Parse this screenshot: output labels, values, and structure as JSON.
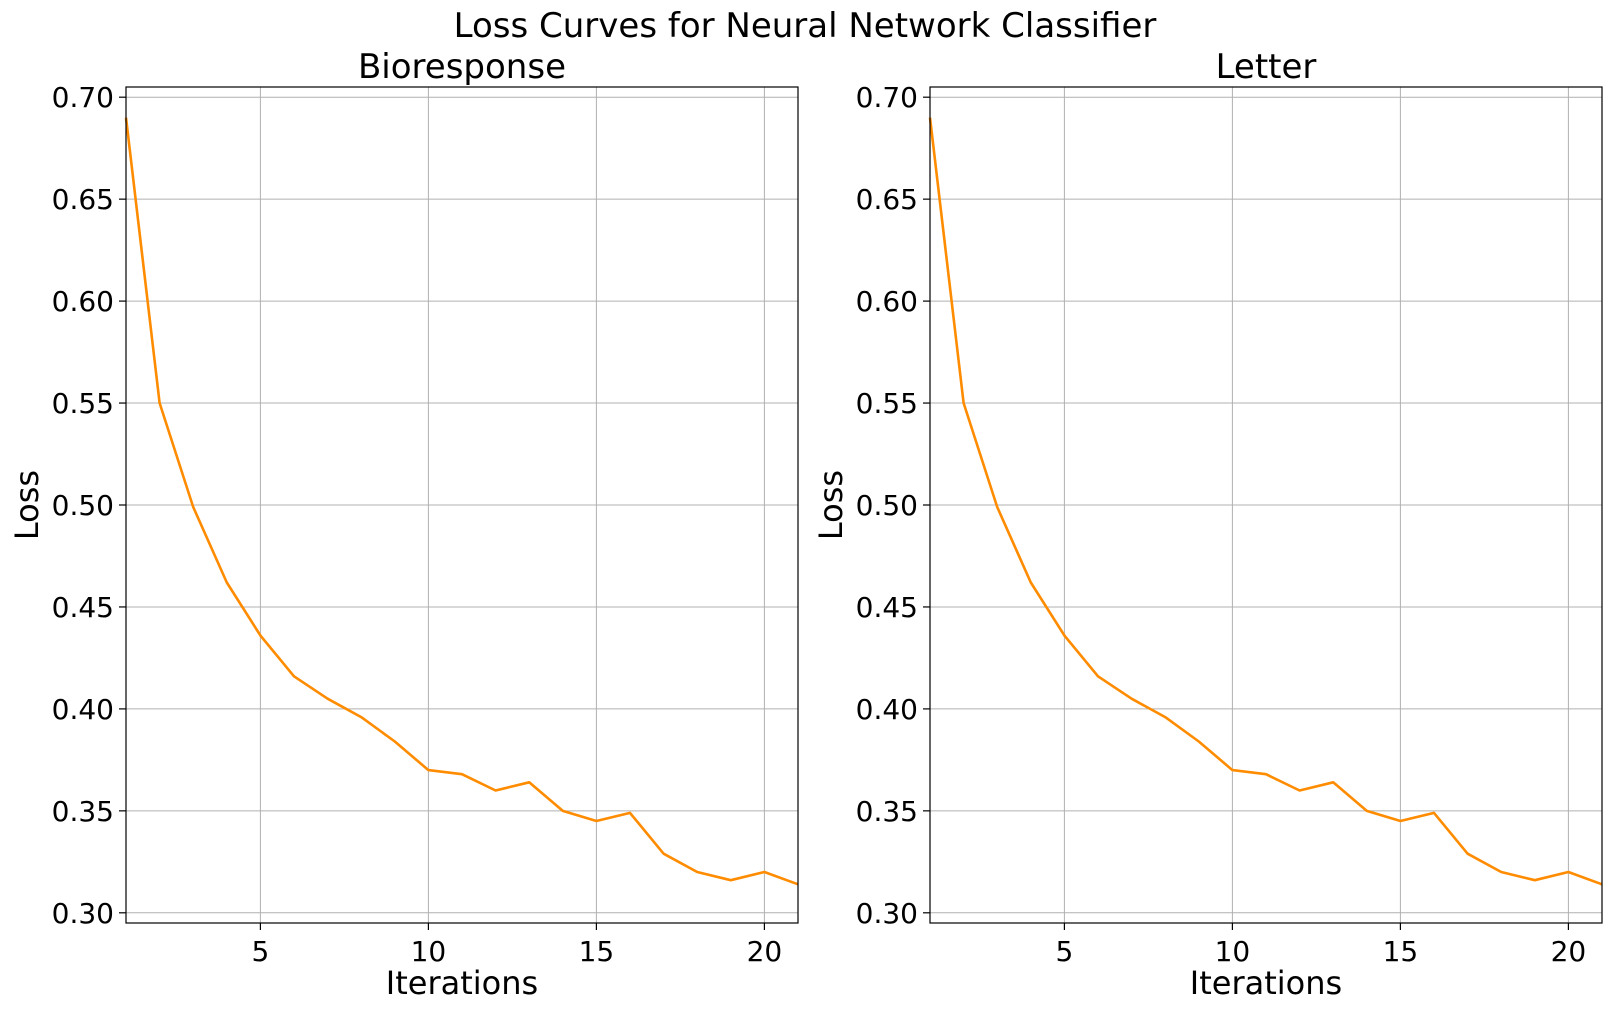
{
  "title": "Loss Curves for Neural Network Classifier",
  "chart_data": [
    {
      "type": "line",
      "title": "Bioresponse",
      "xlabel": "Iterations",
      "ylabel": "Loss",
      "xlim": [
        1,
        21
      ],
      "ylim": [
        0.295,
        0.705
      ],
      "xticks": [
        5,
        10,
        15,
        20
      ],
      "yticks": [
        "0.30",
        "0.35",
        "0.40",
        "0.45",
        "0.50",
        "0.55",
        "0.60",
        "0.65",
        "0.70"
      ],
      "grid": true,
      "color": "#ff8c00",
      "series": [
        {
          "x": [
            1,
            2,
            3,
            4,
            5,
            6,
            7,
            8,
            9,
            10,
            11,
            12,
            13,
            14,
            15,
            16,
            17,
            18,
            19,
            20,
            21
          ],
          "values": [
            0.69,
            0.55,
            0.499,
            0.462,
            0.436,
            0.416,
            0.405,
            0.396,
            0.384,
            0.37,
            0.368,
            0.36,
            0.364,
            0.35,
            0.345,
            0.349,
            0.329,
            0.32,
            0.316,
            0.32,
            0.314
          ]
        }
      ]
    },
    {
      "type": "line",
      "title": "Letter",
      "xlabel": "Iterations",
      "ylabel": "Loss",
      "xlim": [
        1,
        21
      ],
      "ylim": [
        0.295,
        0.705
      ],
      "xticks": [
        5,
        10,
        15,
        20
      ],
      "yticks": [
        "0.30",
        "0.35",
        "0.40",
        "0.45",
        "0.50",
        "0.55",
        "0.60",
        "0.65",
        "0.70"
      ],
      "grid": true,
      "color": "#ff8c00",
      "series": [
        {
          "x": [
            1,
            2,
            3,
            4,
            5,
            6,
            7,
            8,
            9,
            10,
            11,
            12,
            13,
            14,
            15,
            16,
            17,
            18,
            19,
            20,
            21
          ],
          "values": [
            0.69,
            0.55,
            0.499,
            0.462,
            0.436,
            0.416,
            0.405,
            0.396,
            0.384,
            0.37,
            0.368,
            0.36,
            0.364,
            0.35,
            0.345,
            0.349,
            0.329,
            0.32,
            0.316,
            0.32,
            0.314
          ]
        }
      ]
    }
  ]
}
